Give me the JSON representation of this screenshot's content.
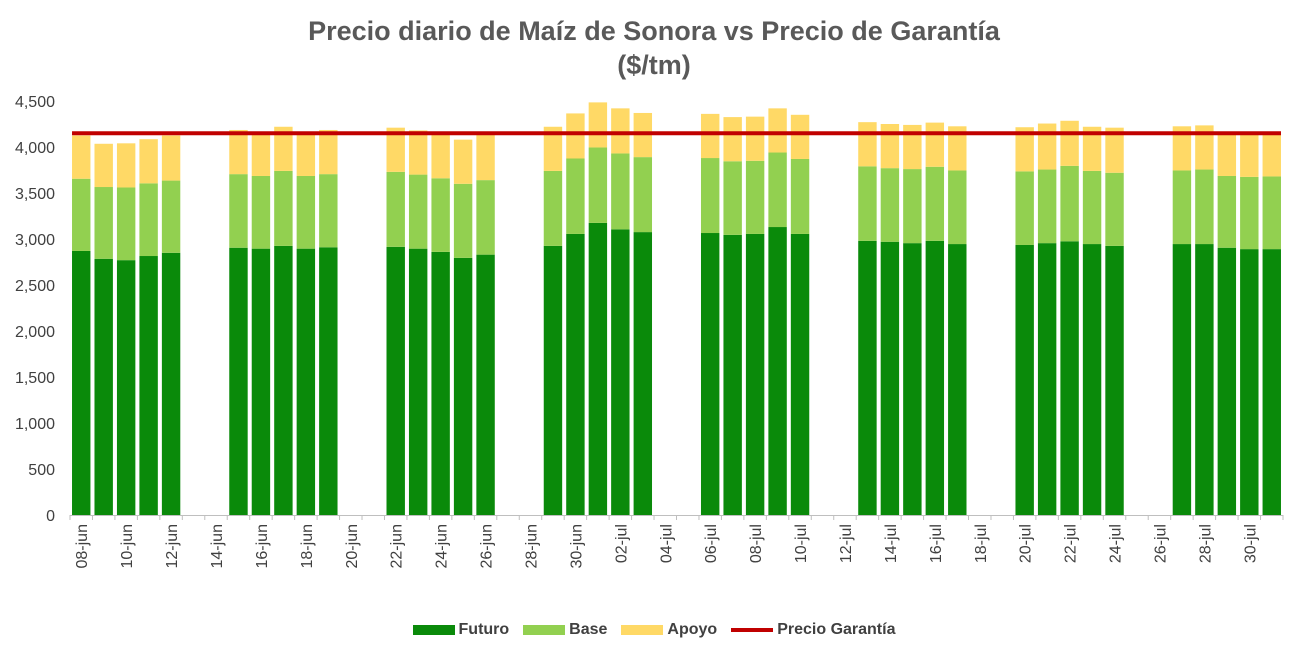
{
  "chart_data": {
    "type": "bar",
    "title": "Precio diario de Maíz de Sonora vs Precio de Garantía",
    "subtitle": "($/tm)",
    "ylim": [
      0,
      4500
    ],
    "yticks": [
      "0",
      "500",
      "1,000",
      "1,500",
      "2,000",
      "2,500",
      "3,000",
      "3,500",
      "4,000",
      "4,500"
    ],
    "ytick_values": [
      0,
      500,
      1000,
      1500,
      2000,
      2500,
      3000,
      3500,
      4000,
      4500
    ],
    "grid": false,
    "legend_position": "bottom",
    "x_tick_labels": [
      "08-jun",
      "10-jun",
      "12-jun",
      "14-jun",
      "16-jun",
      "18-jun",
      "20-jun",
      "22-jun",
      "24-jun",
      "26-jun",
      "28-jun",
      "30-jun",
      "02-jul",
      "04-jul",
      "06-jul",
      "08-jul",
      "10-jul",
      "12-jul",
      "14-jul",
      "16-jul",
      "18-jul",
      "20-jul",
      "22-jul",
      "24-jul",
      "26-jul",
      "28-jul",
      "30-jul"
    ],
    "dates": [
      "08-jun",
      "09-jun",
      "10-jun",
      "11-jun",
      "12-jun",
      "15-jun",
      "16-jun",
      "17-jun",
      "18-jun",
      "19-jun",
      "22-jun",
      "23-jun",
      "24-jun",
      "25-jun",
      "26-jun",
      "29-jun",
      "30-jun",
      "01-jul",
      "02-jul",
      "03-jul",
      "06-jul",
      "07-jul",
      "08-jul",
      "09-jul",
      "10-jul",
      "13-jul",
      "14-jul",
      "15-jul",
      "16-jul",
      "17-jul",
      "20-jul",
      "21-jul",
      "22-jul",
      "23-jul",
      "24-jul",
      "27-jul",
      "28-jul",
      "29-jul",
      "30-jul",
      "31-jul"
    ],
    "series": [
      {
        "name": "Futuro",
        "color": "#0a8a0a",
        "values": [
          2870,
          2785,
          2770,
          2815,
          2850,
          2905,
          2895,
          2925,
          2895,
          2910,
          2915,
          2895,
          2860,
          2795,
          2830,
          2925,
          3055,
          3175,
          3105,
          3075,
          3065,
          3045,
          3055,
          3130,
          3055,
          2980,
          2970,
          2955,
          2980,
          2945,
          2935,
          2955,
          2975,
          2945,
          2925,
          2945,
          2945,
          2905,
          2890,
          2890
        ]
      },
      {
        "name": "Base",
        "color": "#92d050",
        "values": [
          785,
          780,
          790,
          790,
          785,
          800,
          790,
          815,
          790,
          795,
          815,
          805,
          800,
          805,
          810,
          815,
          820,
          820,
          825,
          815,
          815,
          800,
          795,
          810,
          815,
          810,
          800,
          805,
          805,
          800,
          800,
          800,
          820,
          795,
          795,
          800,
          810,
          780,
          785,
          790
        ]
      },
      {
        "name": "Apoyo",
        "color": "#ffd966",
        "values": [
          470,
          470,
          480,
          480,
          490,
          480,
          480,
          480,
          480,
          480,
          480,
          480,
          480,
          480,
          490,
          480,
          490,
          490,
          490,
          480,
          480,
          480,
          480,
          480,
          480,
          480,
          480,
          480,
          480,
          480,
          480,
          500,
          490,
          480,
          490,
          480,
          480,
          470,
          470,
          480
        ]
      }
    ],
    "lines": [
      {
        "name": "Precio Garantía",
        "color": "#c00000",
        "value": 4150
      }
    ]
  }
}
